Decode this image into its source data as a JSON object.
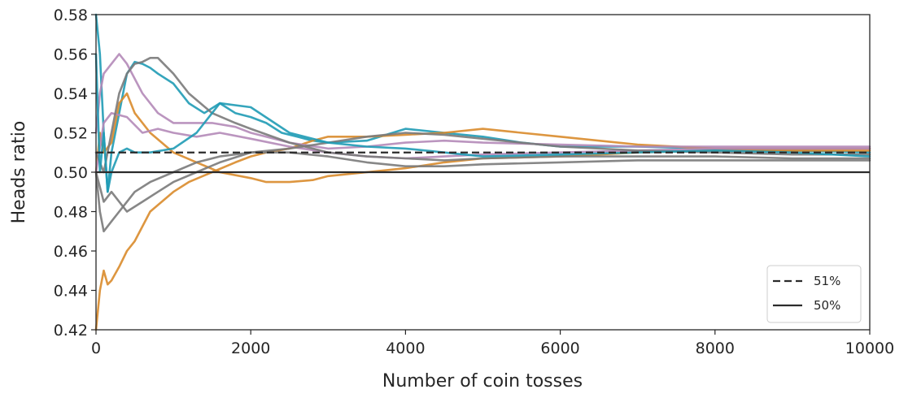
{
  "chart_data": {
    "type": "line",
    "title": "",
    "xlabel": "Number of coin tosses",
    "ylabel": "Heads ratio",
    "xlim": [
      0,
      10000
    ],
    "ylim": [
      0.42,
      0.58
    ],
    "xticks": [
      0,
      2000,
      4000,
      6000,
      8000,
      10000
    ],
    "xtick_labels": [
      "0",
      "2000",
      "4000",
      "6000",
      "8000",
      "10000"
    ],
    "yticks": [
      0.42,
      0.44,
      0.46,
      0.48,
      0.5,
      0.52,
      0.54,
      0.56,
      0.58
    ],
    "ytick_labels": [
      "0.42",
      "0.44",
      "0.46",
      "0.48",
      "0.50",
      "0.52",
      "0.54",
      "0.56",
      "0.58"
    ],
    "grid": false,
    "legend_position": "lower-right",
    "reference_lines": [
      {
        "label": "51%",
        "y": 0.51,
        "style": "dashed",
        "color": "#2b2b2b"
      },
      {
        "label": "50%",
        "y": 0.5,
        "style": "solid",
        "color": "#2b2b2b"
      }
    ],
    "series": [
      {
        "color": "#1f9bb5",
        "x": [
          0,
          50,
          100,
          150,
          200,
          300,
          400,
          500,
          600,
          700,
          800,
          1000,
          1200,
          1400,
          1600,
          1800,
          2000,
          2200,
          2400,
          2600,
          2800,
          3000,
          3500,
          4000,
          4500,
          5000,
          5500,
          6000,
          7000,
          8000,
          9000,
          10000
        ],
        "y": [
          0.58,
          0.56,
          0.52,
          0.49,
          0.51,
          0.53,
          0.55,
          0.556,
          0.555,
          0.553,
          0.55,
          0.545,
          0.535,
          0.53,
          0.535,
          0.53,
          0.528,
          0.525,
          0.52,
          0.518,
          0.516,
          0.515,
          0.516,
          0.522,
          0.52,
          0.518,
          0.515,
          0.513,
          0.513,
          0.512,
          0.511,
          0.51
        ]
      },
      {
        "color": "#d98b2b",
        "x": [
          0,
          50,
          100,
          150,
          200,
          300,
          400,
          500,
          700,
          1000,
          1200,
          1500,
          1800,
          2000,
          2200,
          2500,
          2800,
          3000,
          3500,
          4000,
          4500,
          5000,
          5500,
          6000,
          7000,
          8000,
          9000,
          10000
        ],
        "y": [
          0.42,
          0.44,
          0.45,
          0.443,
          0.445,
          0.452,
          0.46,
          0.465,
          0.48,
          0.49,
          0.495,
          0.5,
          0.505,
          0.508,
          0.51,
          0.512,
          0.516,
          0.518,
          0.518,
          0.519,
          0.52,
          0.522,
          0.52,
          0.518,
          0.514,
          0.512,
          0.512,
          0.512
        ]
      },
      {
        "color": "#d98b2b",
        "x": [
          0,
          50,
          100,
          200,
          300,
          400,
          500,
          700,
          1000,
          1300,
          1600,
          2000,
          2200,
          2500,
          2800,
          3000,
          3500,
          4000,
          4500,
          5000,
          6000,
          7000,
          8000,
          9000,
          10000
        ],
        "y": [
          0.5,
          0.52,
          0.51,
          0.515,
          0.535,
          0.54,
          0.53,
          0.52,
          0.51,
          0.505,
          0.5,
          0.497,
          0.495,
          0.495,
          0.496,
          0.498,
          0.5,
          0.502,
          0.505,
          0.507,
          0.508,
          0.51,
          0.511,
          0.511,
          0.511
        ]
      },
      {
        "color": "#b48ab8",
        "x": [
          0,
          50,
          100,
          200,
          300,
          400,
          600,
          800,
          1000,
          1200,
          1500,
          1800,
          2000,
          2500,
          3000,
          3500,
          4000,
          4500,
          5000,
          6000,
          7000,
          8000,
          9000,
          10000
        ],
        "y": [
          0.52,
          0.54,
          0.55,
          0.555,
          0.56,
          0.555,
          0.54,
          0.53,
          0.525,
          0.525,
          0.525,
          0.523,
          0.52,
          0.515,
          0.512,
          0.513,
          0.515,
          0.516,
          0.515,
          0.514,
          0.513,
          0.513,
          0.513,
          0.513
        ]
      },
      {
        "color": "#b48ab8",
        "x": [
          0,
          100,
          200,
          400,
          600,
          800,
          1000,
          1300,
          1600,
          2000,
          2500,
          3000,
          3500,
          4000,
          4500,
          5000,
          6000,
          7000,
          8000,
          9000,
          10000
        ],
        "y": [
          0.5,
          0.525,
          0.53,
          0.528,
          0.52,
          0.522,
          0.52,
          0.518,
          0.52,
          0.517,
          0.513,
          0.51,
          0.508,
          0.507,
          0.508,
          0.509,
          0.51,
          0.511,
          0.512,
          0.512,
          0.512
        ]
      },
      {
        "color": "#7a7a7a",
        "x": [
          0,
          100,
          200,
          300,
          400,
          500,
          600,
          700,
          800,
          1000,
          1200,
          1500,
          1800,
          2000,
          2500,
          3000,
          3500,
          4000,
          4500,
          5000,
          6000,
          7000,
          8000,
          9000,
          10000
        ],
        "y": [
          0.51,
          0.5,
          0.52,
          0.54,
          0.55,
          0.555,
          0.556,
          0.558,
          0.558,
          0.55,
          0.54,
          0.53,
          0.525,
          0.522,
          0.515,
          0.51,
          0.508,
          0.507,
          0.506,
          0.507,
          0.508,
          0.508,
          0.508,
          0.507,
          0.507
        ]
      },
      {
        "color": "#7a7a7a",
        "x": [
          0,
          50,
          100,
          200,
          300,
          400,
          500,
          700,
          1000,
          1300,
          1600,
          2000,
          2500,
          3000,
          3500,
          4000,
          4500,
          5000,
          6000,
          7000,
          8000,
          9000,
          10000
        ],
        "y": [
          0.5,
          0.48,
          0.47,
          0.475,
          0.48,
          0.485,
          0.49,
          0.495,
          0.5,
          0.505,
          0.508,
          0.51,
          0.51,
          0.508,
          0.505,
          0.503,
          0.503,
          0.504,
          0.505,
          0.506,
          0.506,
          0.506,
          0.506
        ]
      },
      {
        "color": "#7a7a7a",
        "x": [
          0,
          100,
          200,
          400,
          600,
          800,
          1000,
          1300,
          1600,
          2000,
          2500,
          3000,
          3500,
          4000,
          4500,
          5000,
          6000,
          7000,
          8000,
          9000,
          10000
        ],
        "y": [
          0.5,
          0.485,
          0.49,
          0.48,
          0.485,
          0.49,
          0.495,
          0.5,
          0.505,
          0.51,
          0.512,
          0.515,
          0.518,
          0.52,
          0.519,
          0.517,
          0.513,
          0.511,
          0.51,
          0.509,
          0.509
        ]
      },
      {
        "color": "#1f9bb5",
        "x": [
          0,
          50,
          100,
          150,
          200,
          300,
          400,
          500,
          700,
          1000,
          1300,
          1600,
          2000,
          2500,
          3000,
          3500,
          4000,
          4500,
          5000,
          6000,
          7000,
          8000,
          9000,
          10000
        ],
        "y": [
          0.56,
          0.5,
          0.52,
          0.49,
          0.5,
          0.51,
          0.512,
          0.51,
          0.51,
          0.512,
          0.52,
          0.535,
          0.533,
          0.52,
          0.515,
          0.513,
          0.512,
          0.51,
          0.508,
          0.509,
          0.51,
          0.511,
          0.51,
          0.508
        ]
      }
    ]
  }
}
